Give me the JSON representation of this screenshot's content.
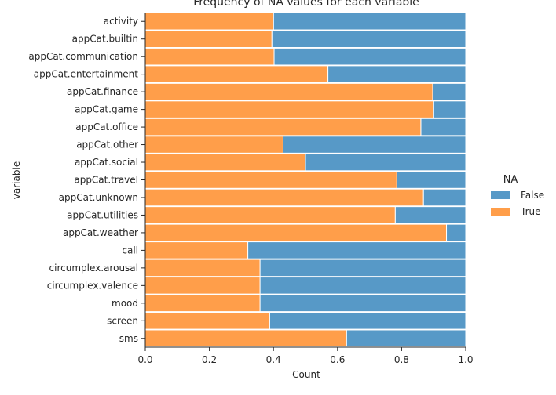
{
  "chart_data": {
    "type": "bar",
    "orientation": "horizontal",
    "stacked": true,
    "title": "Frequency of NA values for each variable",
    "xlabel": "Count",
    "ylabel": "variable",
    "xlim": [
      0,
      1
    ],
    "xticks": [
      "0.0",
      "0.2",
      "0.4",
      "0.6",
      "0.8",
      "1.0"
    ],
    "grid": false,
    "legend": {
      "title": "NA",
      "position": "right",
      "entries": [
        "False",
        "True"
      ]
    },
    "colors": {
      "False": "#5799c7",
      "True": "#ff9e4a"
    },
    "categories": [
      "activity",
      "appCat.builtin",
      "appCat.communication",
      "appCat.entertainment",
      "appCat.finance",
      "appCat.game",
      "appCat.office",
      "appCat.other",
      "appCat.social",
      "appCat.travel",
      "appCat.unknown",
      "appCat.utilities",
      "appCat.weather",
      "call",
      "circumplex.arousal",
      "circumplex.valence",
      "mood",
      "screen",
      "sms"
    ],
    "series": [
      {
        "name": "True",
        "values": [
          0.4,
          0.395,
          0.402,
          0.57,
          0.897,
          0.9,
          0.86,
          0.43,
          0.5,
          0.785,
          0.868,
          0.78,
          0.94,
          0.32,
          0.358,
          0.358,
          0.358,
          0.388,
          0.628
        ]
      },
      {
        "name": "False",
        "values": [
          0.6,
          0.605,
          0.598,
          0.43,
          0.103,
          0.1,
          0.14,
          0.57,
          0.5,
          0.215,
          0.132,
          0.22,
          0.06,
          0.68,
          0.642,
          0.642,
          0.642,
          0.612,
          0.372
        ]
      }
    ]
  }
}
